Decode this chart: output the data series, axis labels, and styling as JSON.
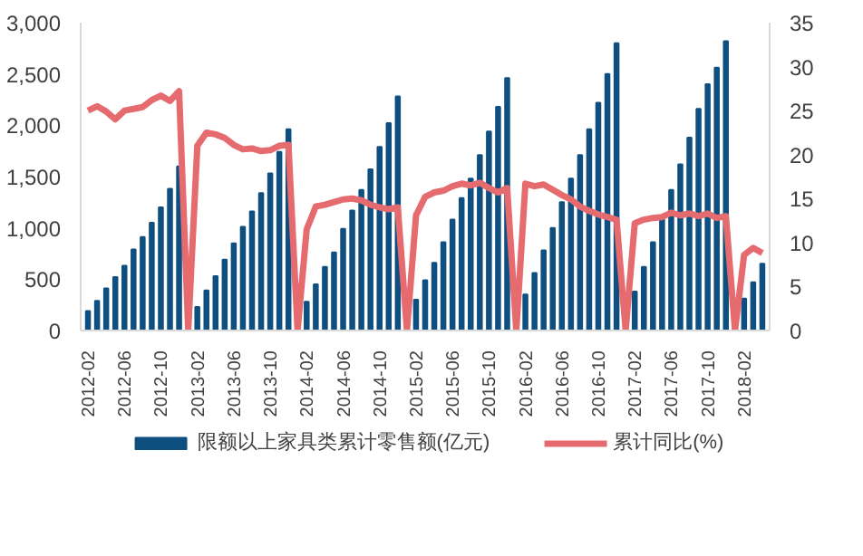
{
  "chart_data": {
    "type": "bar",
    "categories": [
      "2012-02",
      null,
      null,
      null,
      "2012-06",
      null,
      null,
      null,
      "2012-10",
      null,
      null,
      null,
      "2013-02",
      null,
      null,
      null,
      "2013-06",
      null,
      null,
      null,
      "2013-10",
      null,
      null,
      null,
      "2014-02",
      null,
      null,
      null,
      "2014-06",
      null,
      null,
      null,
      "2014-10",
      null,
      null,
      null,
      "2015-02",
      null,
      null,
      null,
      "2015-06",
      null,
      null,
      null,
      "2015-10",
      null,
      null,
      null,
      "2016-02",
      null,
      null,
      null,
      "2016-06",
      null,
      null,
      null,
      "2016-10",
      null,
      null,
      null,
      "2017-02",
      null,
      null,
      null,
      "2017-06",
      null,
      null,
      null,
      "2017-10",
      null,
      null,
      null,
      "2018-02",
      null,
      null
    ],
    "series": [
      {
        "name": "限额以上家具类累计零售额(亿元)",
        "color": "#0f4f80",
        "values": [
          190,
          290,
          410,
          520,
          630,
          790,
          910,
          1050,
          1200,
          1380,
          1600,
          null,
          230,
          390,
          530,
          690,
          850,
          1010,
          1160,
          1340,
          1530,
          1740,
          1960,
          null,
          280,
          450,
          620,
          760,
          990,
          1170,
          1370,
          1570,
          1790,
          2020,
          2280,
          null,
          300,
          490,
          660,
          860,
          1080,
          1290,
          1480,
          1710,
          1940,
          2180,
          2460,
          null,
          350,
          560,
          780,
          1000,
          1250,
          1480,
          1710,
          1960,
          2220,
          2500,
          2800,
          null,
          380,
          620,
          860,
          1090,
          1370,
          1620,
          1880,
          2160,
          2400,
          2560,
          2820,
          null,
          310,
          470,
          650
        ]
      },
      {
        "name": "累计同比(%)",
        "type": "line",
        "axis": "y2",
        "color": "#e56b6f",
        "values": [
          25.0,
          25.5,
          24.9,
          24.0,
          25.0,
          25.2,
          25.4,
          26.2,
          26.7,
          26.1,
          27.2,
          0,
          21.0,
          22.5,
          22.3,
          21.9,
          21.1,
          20.6,
          20.7,
          20.4,
          20.5,
          21.0,
          21.1,
          0,
          11.5,
          14.1,
          14.3,
          14.6,
          14.9,
          15.0,
          14.8,
          14.3,
          14.0,
          13.8,
          14.0,
          0,
          13.1,
          15.2,
          15.7,
          15.9,
          16.4,
          16.7,
          16.5,
          16.8,
          16.2,
          15.7,
          16.2,
          0,
          16.7,
          16.4,
          16.6,
          16.0,
          15.4,
          14.9,
          14.1,
          13.6,
          13.2,
          12.9,
          12.6,
          0,
          12.2,
          12.6,
          12.8,
          12.9,
          13.4,
          13.1,
          13.3,
          13.0,
          13.3,
          12.8,
          13.0,
          0,
          8.6,
          9.4,
          8.8
        ]
      }
    ],
    "ylim": [
      0,
      3000
    ],
    "yticks": [
      0,
      500,
      {
        "value": 1000,
        "label": "1,000"
      },
      {
        "value": 1500,
        "label": "1,500"
      },
      {
        "value": 2000,
        "label": "2,000"
      },
      {
        "value": 2500,
        "label": "2,500"
      },
      {
        "value": 3000,
        "label": "3,000"
      }
    ],
    "y2lim": [
      0,
      35
    ],
    "y2ticks": [
      0,
      5,
      10,
      15,
      20,
      25,
      30,
      35
    ],
    "legend": "bottom"
  }
}
